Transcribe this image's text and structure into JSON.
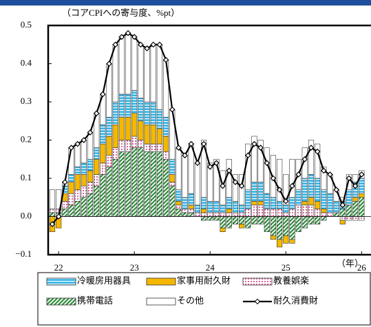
{
  "chart_data": {
    "type": "stacked-bar-line",
    "annotation": "（コアCPIへの寄与度、%pt）",
    "x_unit": "（年）",
    "categories": [
      null,
      "22",
      null,
      null,
      null,
      null,
      null,
      null,
      null,
      null,
      null,
      null,
      null,
      "23",
      null,
      null,
      null,
      null,
      null,
      null,
      null,
      null,
      null,
      null,
      null,
      "24",
      null,
      null,
      null,
      null,
      null,
      null,
      null,
      null,
      null,
      null,
      null,
      "25",
      null,
      null,
      null,
      null,
      null,
      null,
      null,
      null,
      null,
      null,
      null,
      "26"
    ],
    "ylim": [
      -0.1,
      0.5
    ],
    "yticks": [
      {
        "value": -0.1,
        "label": "−0.1"
      },
      {
        "value": 0,
        "label": "0.0"
      },
      0.1,
      0.2,
      0.3,
      0.4,
      0.5
    ],
    "series": [
      {
        "name": "携帯電話",
        "color": "#2e8b3a",
        "pattern": "diagonal",
        "values": [
          0.01,
          0.01,
          0.02,
          0.03,
          0.04,
          0.05,
          0.06,
          0.08,
          0.11,
          0.13,
          0.15,
          0.17,
          0.17,
          0.18,
          0.18,
          0.17,
          0.17,
          0.17,
          0.15,
          0.08,
          0.02,
          0.01,
          0.01,
          0,
          -0.01,
          -0.01,
          -0.01,
          -0.03,
          -0.03,
          -0.02,
          -0.02,
          -0.03,
          -0.02,
          -0.02,
          -0.04,
          -0.05,
          -0.06,
          -0.05,
          -0.06,
          -0.04,
          -0.03,
          -0.02,
          -0.02,
          -0.01,
          0,
          0.01,
          0.02,
          0.03,
          0.04,
          0.05
        ]
      },
      {
        "name": "教養娯楽",
        "color": "#e0609a",
        "pattern": "dots",
        "values": [
          0.01,
          0.01,
          0.02,
          0.03,
          0.03,
          0.03,
          0.03,
          0.03,
          0.03,
          0.03,
          0.03,
          0.03,
          0.03,
          0.03,
          0.02,
          0.02,
          0.02,
          0.02,
          0.02,
          0.01,
          0.01,
          0.01,
          0.01,
          0.01,
          0.01,
          0.01,
          0.01,
          0.01,
          0.01,
          0.01,
          0.01,
          0.02,
          0.03,
          0.03,
          0.02,
          0.02,
          0.02,
          0.01,
          0.02,
          0.03,
          0.03,
          0.03,
          0.02,
          0.01,
          0.01,
          0,
          -0.01,
          -0.01,
          -0.01,
          -0.01
        ]
      },
      {
        "name": "家事用耐久財",
        "color": "#f5b800",
        "pattern": "solid",
        "values": [
          -0.04,
          -0.03,
          0.02,
          0.03,
          0.04,
          0.03,
          0.03,
          0.04,
          0.05,
          0.05,
          0.06,
          0.06,
          0.06,
          0.06,
          0.05,
          0.05,
          0.05,
          0.04,
          0.04,
          0.02,
          0.01,
          0,
          0.01,
          0,
          0.01,
          0,
          0,
          -0.01,
          0.01,
          0,
          -0.01,
          0,
          0.01,
          0.01,
          0,
          -0.01,
          -0.02,
          -0.02,
          -0.01,
          0,
          0.01,
          0.02,
          0.02,
          0.01,
          0,
          0,
          -0.01,
          0,
          0.01,
          0.01
        ]
      },
      {
        "name": "冷暖房用器具",
        "color": "#38b6e8",
        "pattern": "hlines",
        "values": [
          0,
          0,
          0.02,
          0.02,
          0.02,
          0.03,
          0.03,
          0.03,
          0.05,
          0.05,
          0.06,
          0.06,
          0.06,
          0.06,
          0.06,
          0.06,
          0.06,
          0.05,
          0.05,
          0.04,
          0.03,
          0.03,
          0.03,
          0.02,
          0.03,
          0.03,
          0.03,
          0.02,
          0.03,
          0.03,
          0.02,
          0.05,
          0.05,
          0.05,
          0.04,
          0.03,
          0.02,
          0.02,
          0.03,
          0.04,
          0.06,
          0.06,
          0.06,
          0.05,
          0.05,
          0.03,
          0.02,
          0.04,
          0.04,
          0.04
        ]
      },
      {
        "name": "その他",
        "color": "#ffffff",
        "pattern": "none",
        "values": [
          0.05,
          0.05,
          0.01,
          0.07,
          0.06,
          0.06,
          0.07,
          0.09,
          0.08,
          0.14,
          0.15,
          0.15,
          0.16,
          0.14,
          0.14,
          0.14,
          0.15,
          0.17,
          0.15,
          0.13,
          0.11,
          0.11,
          0.13,
          0.11,
          0.15,
          0.1,
          0.11,
          0.09,
          0.1,
          0.07,
          0.08,
          0.12,
          0.12,
          0.11,
          0.12,
          0.11,
          0.11,
          0.08,
          0.1,
          0.08,
          0.08,
          0.09,
          0.09,
          0.06,
          0.05,
          0.03,
          0.01,
          0.04,
          0.02,
          0.02
        ]
      }
    ],
    "line": {
      "name": "耐久消費財",
      "color": "#000000",
      "values": [
        -0.02,
        0,
        0.09,
        0.18,
        0.19,
        0.2,
        0.22,
        0.27,
        0.32,
        0.4,
        0.45,
        0.47,
        0.48,
        0.47,
        0.45,
        0.44,
        0.45,
        0.45,
        0.41,
        0.28,
        0.18,
        0.16,
        0.19,
        0.14,
        0.19,
        0.13,
        0.14,
        0.08,
        0.12,
        0.09,
        0.08,
        0.16,
        0.19,
        0.18,
        0.14,
        0.1,
        0.07,
        0.04,
        0.08,
        0.11,
        0.15,
        0.18,
        0.17,
        0.12,
        0.11,
        0.07,
        0.03,
        0.1,
        0.08,
        0.11
      ]
    },
    "legend_order": [
      3,
      2,
      1,
      0,
      4
    ]
  }
}
